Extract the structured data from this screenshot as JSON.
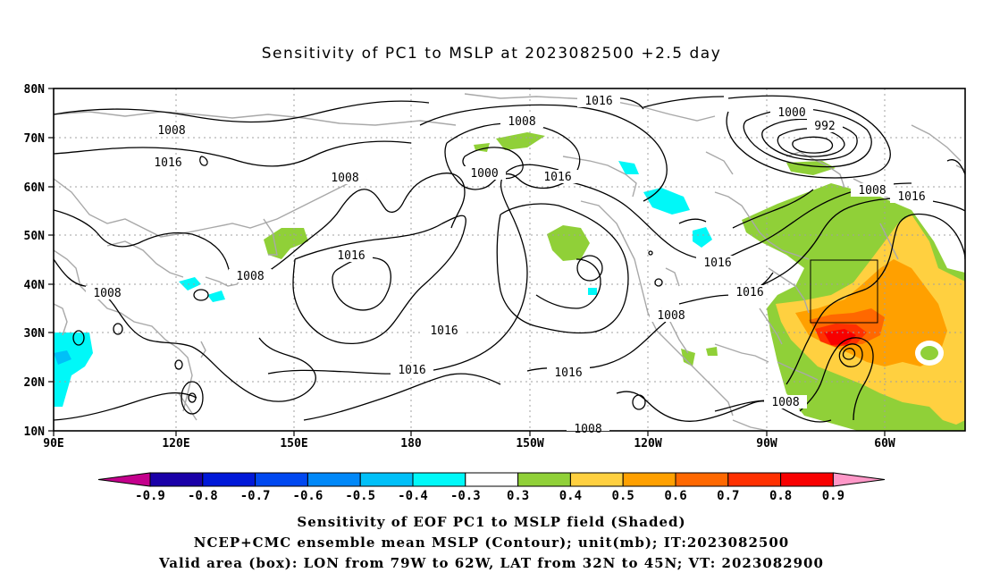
{
  "title": "Sensitivity of PC1 to MSLP at 2023082500 +2.5 day",
  "lat_labels": [
    "80N",
    "70N",
    "60N",
    "50N",
    "40N",
    "30N",
    "20N",
    "10N"
  ],
  "lon_labels": [
    "90E",
    "120E",
    "150E",
    "180",
    "150W",
    "120W",
    "90W",
    "60W"
  ],
  "colorbar": {
    "labels": [
      "-0.9",
      "-0.8",
      "-0.7",
      "-0.6",
      "-0.5",
      "-0.4",
      "-0.3",
      "0.3",
      "0.4",
      "0.5",
      "0.6",
      "0.7",
      "0.8",
      "0.9"
    ],
    "colors": [
      "#c4008c",
      "#1a00a8",
      "#0018d8",
      "#0048f0",
      "#0088f8",
      "#00c0f8",
      "#00f8f8",
      "#ffffff",
      "#90d038",
      "#ffd040",
      "#ffa000",
      "#ff6800",
      "#ff3000",
      "#f80000",
      "#ff98c8"
    ]
  },
  "contour_labels": [
    "1008",
    "1016",
    "1008",
    "1008",
    "1016",
    "1008",
    "1000",
    "1016",
    "1016",
    "1016",
    "1016",
    "1016",
    "1008",
    "1000",
    "992",
    "1008",
    "1016",
    "1016",
    "1016",
    "1008",
    "1008",
    "1008"
  ],
  "captions": {
    "line1": "Sensitivity of EOF PC1 to MSLP field (Shaded)",
    "line2": "NCEP+CMC ensemble mean MSLP (Contour); unit(mb); IT:2023082500",
    "line3": "Valid area (box): LON from 79W to 62W, LAT from 32N to 45N; VT: 2023082900"
  },
  "valid_box": {
    "lon_min": -79,
    "lon_max": -62,
    "lat_min": 32,
    "lat_max": 45
  }
}
